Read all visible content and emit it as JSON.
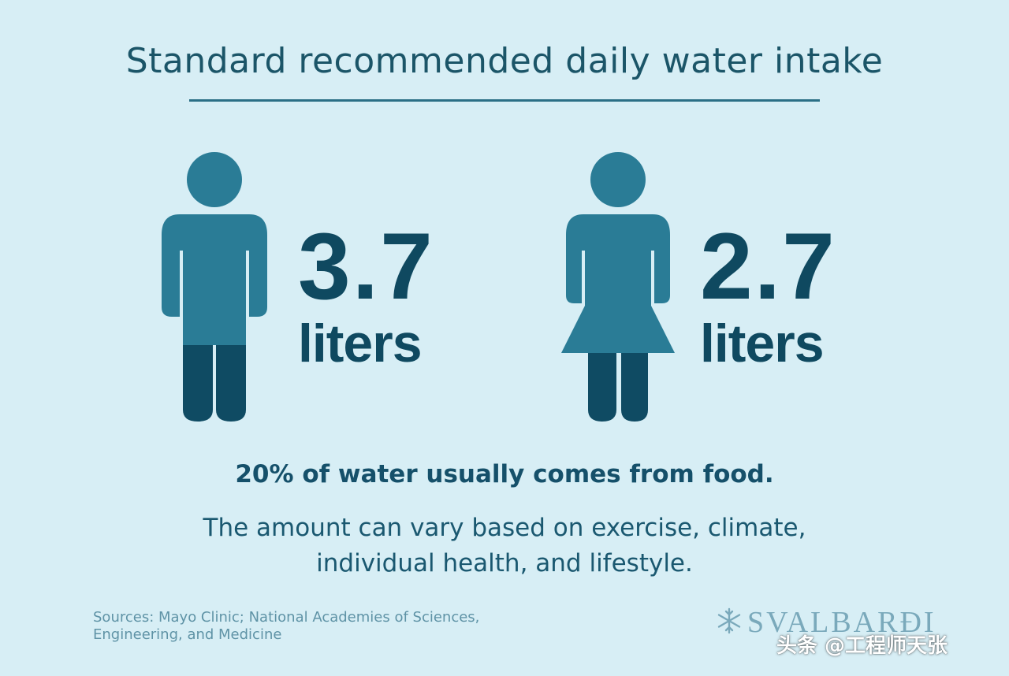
{
  "title": "Standard recommended daily water intake",
  "men": {
    "icon": "man-icon",
    "value": "3.7",
    "unit": "liters"
  },
  "women": {
    "icon": "woman-icon",
    "value": "2.7",
    "unit": "liters"
  },
  "food_fact": "20% of water usually comes from food.",
  "variation_note": "The amount can vary based on exercise, climate, individual health, and lifestyle.",
  "sources": "Sources: Mayo Clinic; National Academies of Sciences, Engineering, and Medicine",
  "brand": {
    "icon": "snowflake-icon",
    "name": "SVALBARÐI"
  },
  "watermark": "头条 @工程师天张",
  "colors": {
    "background": "#d7eef5",
    "figure_light": "#2a7c96",
    "figure_dark": "#0f4b63",
    "text_dark": "#0f4960"
  }
}
